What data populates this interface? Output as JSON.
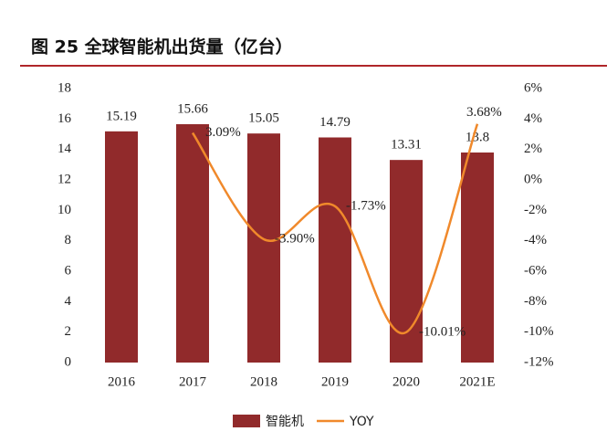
{
  "chart_data": {
    "type": "bar_line",
    "title": "图 25  全球智能机出货量（亿台）",
    "categories": [
      "2016",
      "2017",
      "2018",
      "2019",
      "2020",
      "2021E"
    ],
    "series": [
      {
        "name": "智能机",
        "type": "bar",
        "color": "#912a2b",
        "values": [
          15.19,
          15.66,
          15.05,
          14.79,
          13.31,
          13.8
        ]
      },
      {
        "name": "YOY",
        "type": "line",
        "axis": "y2",
        "color": "#f0892b",
        "smooth": true,
        "values": [
          null,
          3.09,
          -3.9,
          -1.73,
          -10.01,
          3.68
        ],
        "value_labels": [
          null,
          "3.09%",
          "-3.90%",
          "-1.73%",
          "-10.01%",
          "3.68%"
        ]
      }
    ],
    "ylim": [
      0,
      18
    ],
    "yticks": [
      0,
      2,
      4,
      6,
      8,
      10,
      12,
      14,
      16,
      18
    ],
    "y2lim": [
      -12,
      6
    ],
    "y2ticks": [
      {
        "value": -12,
        "label": "-12%"
      },
      {
        "value": -10,
        "label": "-10%"
      },
      {
        "value": -8,
        "label": "-8%"
      },
      {
        "value": -6,
        "label": "-6%"
      },
      {
        "value": -4,
        "label": "-4%"
      },
      {
        "value": -2,
        "label": "-2%"
      },
      {
        "value": 0,
        "label": "0%"
      },
      {
        "value": 2,
        "label": "2%"
      },
      {
        "value": 4,
        "label": "4%"
      },
      {
        "value": 6,
        "label": "6%"
      }
    ],
    "legend": "bottom",
    "grid": false
  }
}
